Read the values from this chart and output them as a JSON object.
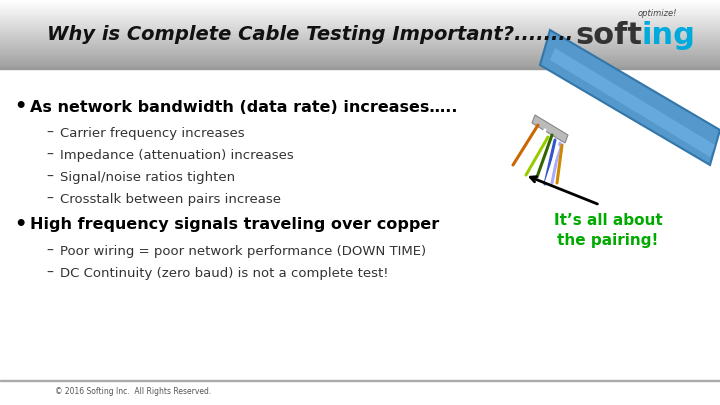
{
  "title": "Why is Complete Cable Testing Important?........",
  "bg_color": "#ffffff",
  "bullet1_text": "As network bandwidth (data rate) increases…..",
  "bullet1_sub": [
    "Carrier frequency increases",
    "Impedance (attenuation) increases",
    "Signal/noise ratios tighten",
    "Crosstalk between pairs increase"
  ],
  "bullet2_text": "High frequency signals traveling over copper",
  "bullet2_sub": [
    "Poor wiring = poor network performance (DOWN TIME)",
    "DC Continuity (zero baud) is not a complete test!"
  ],
  "annotation_text": "It’s all about\nthe pairing!",
  "annotation_color": "#00aa00",
  "footer_text": "© 2016 Softing Inc.  All Rights Reserved.",
  "footer_color": "#555555"
}
